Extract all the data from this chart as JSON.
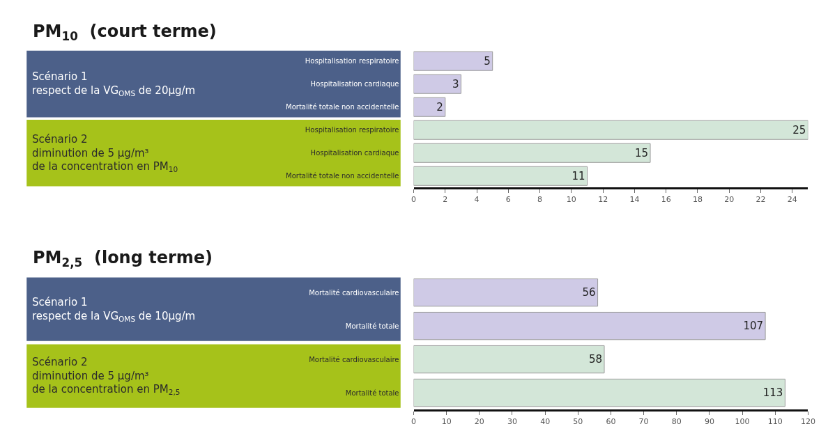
{
  "chart_data": [
    {
      "type": "bar",
      "orientation": "horizontal",
      "title": "PM$_{10}$  (court terme)",
      "categories": [
        "Hospitalisation respiratoire",
        "Hospitalisation cardiaque",
        "Mortalité totale non accidentelle",
        "Hospitalisation respiratoire",
        "Hospitalisation cardiaque",
        "Mortalité totale non accidentelle"
      ],
      "values": [
        5,
        3,
        2,
        25,
        15,
        11
      ],
      "colors": [
        "#cfcae6",
        "#cfcae6",
        "#cfcae6",
        "#d3e6d8",
        "#d3e6d8",
        "#d3e6d8"
      ],
      "annotations": [
        "Scénario 1\nrespect de la VG$_{OMS}$ de 20µg/m",
        "Scénario 2\ndiminution de 5 µg/m³\nde la concentration en PM$_{10}$"
      ],
      "xlim": [
        0,
        25
      ],
      "xticks": [
        0,
        2,
        4,
        6,
        8,
        10,
        12,
        14,
        16,
        18,
        20,
        22,
        24
      ],
      "data_labels": true
    },
    {
      "type": "bar",
      "orientation": "horizontal",
      "title": "PM$_{2,5}$  (long terme)",
      "categories": [
        "Mortalité cardiovasculaire",
        "Mortalité totale",
        "Mortalité cardiovasculaire",
        "Mortalité totale"
      ],
      "values": [
        56,
        107,
        58,
        113
      ],
      "colors": [
        "#cfcae6",
        "#cfcae6",
        "#d3e6d8",
        "#d3e6d8"
      ],
      "annotations": [
        "Scénario 1\nrespect de la VG$_{OMS}$ de 10µg/m",
        "Scénario 2\ndiminution de 5 µg/m³\nde la concentration en PM$_{2,5}$"
      ],
      "xlim": [
        0,
        120
      ],
      "xticks": [
        0,
        10,
        20,
        30,
        40,
        50,
        60,
        70,
        80,
        90,
        100,
        110,
        120
      ],
      "data_labels": true
    }
  ]
}
